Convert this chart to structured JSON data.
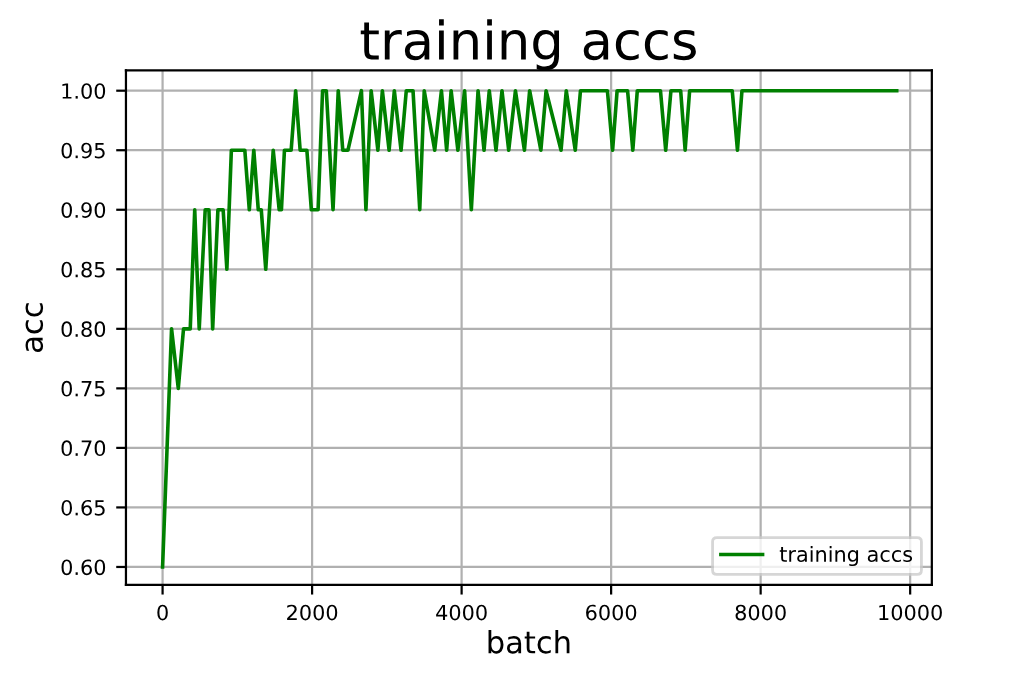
{
  "chart_data": {
    "type": "line",
    "title": "training accs",
    "xlabel": "batch",
    "ylabel": "acc",
    "x": [
      0,
      120,
      210,
      280,
      370,
      430,
      490,
      570,
      620,
      670,
      740,
      810,
      860,
      920,
      1100,
      1160,
      1220,
      1280,
      1320,
      1380,
      1480,
      1560,
      1590,
      1630,
      1720,
      1780,
      1840,
      1930,
      1990,
      2080,
      2140,
      2190,
      2280,
      2350,
      2410,
      2480,
      2660,
      2720,
      2790,
      2880,
      2940,
      3030,
      3100,
      3190,
      3260,
      3350,
      3440,
      3500,
      3640,
      3730,
      3800,
      3860,
      3950,
      4040,
      4130,
      4220,
      4300,
      4370,
      4460,
      4540,
      4630,
      4720,
      4840,
      4910,
      5060,
      5130,
      5330,
      5400,
      5520,
      5590,
      5950,
      6020,
      6080,
      6220,
      6290,
      6350,
      6660,
      6730,
      6800,
      6930,
      6990,
      7050,
      7620,
      7690,
      7750,
      9820
    ],
    "series": [
      {
        "name": "training accs",
        "color": "#008000",
        "values": [
          0.6,
          0.8,
          0.75,
          0.8,
          0.8,
          0.9,
          0.8,
          0.9,
          0.9,
          0.8,
          0.9,
          0.9,
          0.85,
          0.95,
          0.95,
          0.9,
          0.95,
          0.9,
          0.9,
          0.85,
          0.95,
          0.9,
          0.9,
          0.95,
          0.95,
          1.0,
          0.95,
          0.95,
          0.9,
          0.9,
          1.0,
          1.0,
          0.9,
          1.0,
          0.95,
          0.95,
          1.0,
          0.9,
          1.0,
          0.95,
          1.0,
          0.95,
          1.0,
          0.95,
          1.0,
          1.0,
          0.9,
          1.0,
          0.95,
          1.0,
          0.95,
          1.0,
          0.95,
          1.0,
          0.9,
          1.0,
          0.95,
          1.0,
          0.95,
          1.0,
          0.95,
          1.0,
          0.95,
          1.0,
          0.95,
          1.0,
          0.95,
          1.0,
          0.95,
          1.0,
          1.0,
          0.95,
          1.0,
          1.0,
          0.95,
          1.0,
          1.0,
          0.95,
          1.0,
          1.0,
          0.95,
          1.0,
          1.0,
          0.95,
          1.0,
          1.0
        ]
      }
    ],
    "xlim": [
      -490,
      10290
    ],
    "ylim": [
      0.585,
      1.017
    ],
    "xticks": [
      0,
      2000,
      4000,
      6000,
      8000,
      10000
    ],
    "yticks": [
      {
        "value": 0.6,
        "label": "0.60"
      },
      {
        "value": 0.65,
        "label": "0.65"
      },
      {
        "value": 0.7,
        "label": "0.70"
      },
      {
        "value": 0.75,
        "label": "0.75"
      },
      {
        "value": 0.8,
        "label": "0.80"
      },
      {
        "value": 0.85,
        "label": "0.85"
      },
      {
        "value": 0.9,
        "label": "0.90"
      },
      {
        "value": 0.95,
        "label": "0.95"
      },
      {
        "value": 1.0,
        "label": "1.00"
      }
    ],
    "grid": true,
    "legend": "bottom right"
  }
}
